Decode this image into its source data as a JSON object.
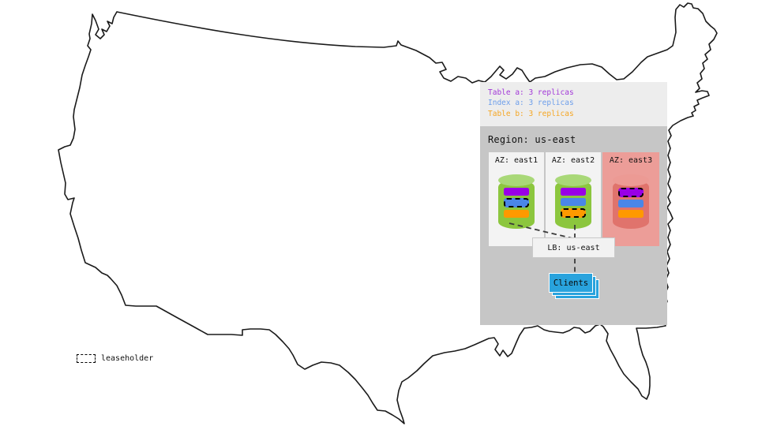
{
  "legend": {
    "items": [
      {
        "label": "Table a: 3 replicas",
        "series": "table-a",
        "color": "#A238D8"
      },
      {
        "label": "Index a: 3 replicas",
        "series": "index-a",
        "color": "#6D9EEB"
      },
      {
        "label": "Table b: 3 replicas",
        "series": "table-b",
        "color": "#F5A623"
      }
    ]
  },
  "region": {
    "title": "Region: us-east",
    "azs": [
      {
        "label": "AZ: east1",
        "status": "up",
        "bars": [
          {
            "series": "table-a",
            "leaseholder": false
          },
          {
            "series": "index-a",
            "leaseholder": true
          },
          {
            "series": "table-b",
            "leaseholder": false
          }
        ]
      },
      {
        "label": "AZ: east2",
        "status": "up",
        "bars": [
          {
            "series": "table-a",
            "leaseholder": false
          },
          {
            "series": "index-a",
            "leaseholder": false
          },
          {
            "series": "table-b",
            "leaseholder": true
          }
        ]
      },
      {
        "label": "AZ: east3",
        "status": "down",
        "bars": [
          {
            "series": "table-a",
            "leaseholder": true
          },
          {
            "series": "index-a",
            "leaseholder": false
          },
          {
            "series": "table-b",
            "leaseholder": false
          }
        ]
      }
    ],
    "lb_label": "LB: us-east",
    "clients_label": "Clients"
  },
  "map_key": {
    "leaseholder_label": "leaseholder"
  },
  "colors": {
    "table_a_bar": "#9900E6",
    "index_a_bar": "#4A86E8",
    "table_b_bar": "#FF9900",
    "node_up_body": "#8CC63E",
    "node_up_top": "#A9D878",
    "node_down_body": "#E0736C",
    "node_down_top": "#EC9A94",
    "az_down_bg": "#EC9D98",
    "az_up_bg": "#F3F3F3",
    "region_bg": "#C6C6C6",
    "legend_bg": "#EDEDED",
    "clients_box": "#29A3DD",
    "map_outline": "#1A1A1A"
  }
}
